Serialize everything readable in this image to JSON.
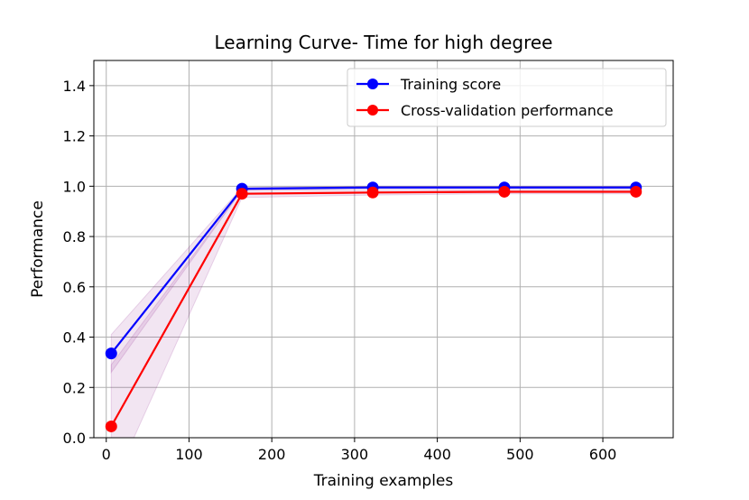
{
  "chart_data": {
    "type": "line",
    "title": "Learning Curve- Time for high degree",
    "xlabel": "Training examples",
    "ylabel": "Performance",
    "xlim": [
      -15,
      685
    ],
    "ylim": [
      0.0,
      1.5
    ],
    "xticks": [
      0,
      100,
      200,
      300,
      400,
      500,
      600
    ],
    "xtick_labels": [
      "0",
      "100",
      "200",
      "300",
      "400",
      "500",
      "600"
    ],
    "yticks": [
      0.0,
      0.2,
      0.4,
      0.6,
      0.8,
      1.0,
      1.2,
      1.4
    ],
    "ytick_labels": [
      "0.0",
      "0.2",
      "0.4",
      "0.6",
      "0.8",
      "1.0",
      "1.2",
      "1.4"
    ],
    "grid": true,
    "legend_position": "top-right",
    "x": [
      6,
      164,
      322,
      481,
      640
    ],
    "series": [
      {
        "name": "Training score",
        "color": "#0000ff",
        "values": [
          0.335,
          0.99,
          0.995,
          0.995,
          0.995
        ],
        "band_lower": [
          0.26,
          0.985,
          0.99,
          0.99,
          0.99
        ],
        "band_upper": [
          0.41,
          0.995,
          1.0,
          1.0,
          1.0
        ]
      },
      {
        "name": "Cross-validation performance",
        "color": "#ff0000",
        "values": [
          0.045,
          0.97,
          0.975,
          0.978,
          0.978
        ],
        "band_lower": [
          -0.2,
          0.955,
          0.965,
          0.97,
          0.97
        ],
        "band_upper": [
          0.29,
          0.985,
          0.985,
          0.985,
          0.985
        ]
      }
    ],
    "band_color": "#800080"
  }
}
